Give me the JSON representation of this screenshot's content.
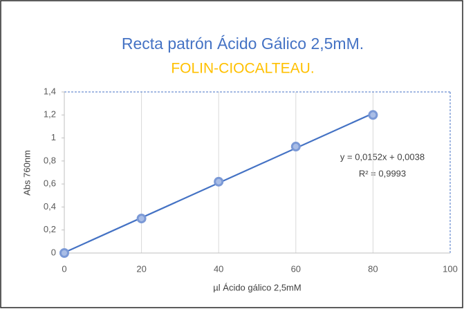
{
  "chart_data": {
    "type": "scatter",
    "title": "Recta patrón Ácido Gálico 2,5mM.",
    "subtitle": "FOLIN-CIOCALTEAU.",
    "x_label": "µl Ácido gálico 2,5mM",
    "y_label": "Abs 760nm",
    "annotations": [
      "y = 0,0152x + 0,0038",
      "R² = 0,9993"
    ],
    "trendline": "linear",
    "color": "#4472c4",
    "x": [
      0,
      20,
      40,
      60,
      80
    ],
    "values": [
      0,
      0.3,
      0.62,
      0.925,
      1.2
    ],
    "xlim": [
      0,
      100
    ],
    "xticks": [
      0,
      20,
      40,
      60,
      80,
      100
    ],
    "ylim": [
      0,
      1.4
    ],
    "yticks": [
      0,
      {
        "value": 0.2,
        "label": "0,2"
      },
      {
        "value": 0.4,
        "label": "0,4"
      },
      {
        "value": 0.6,
        "label": "0,6"
      },
      {
        "value": 0.8,
        "label": "0,8"
      },
      1,
      {
        "value": 1.2,
        "label": "1,2"
      },
      {
        "value": 1.4,
        "label": "1,4"
      }
    ],
    "grid": "x"
  }
}
